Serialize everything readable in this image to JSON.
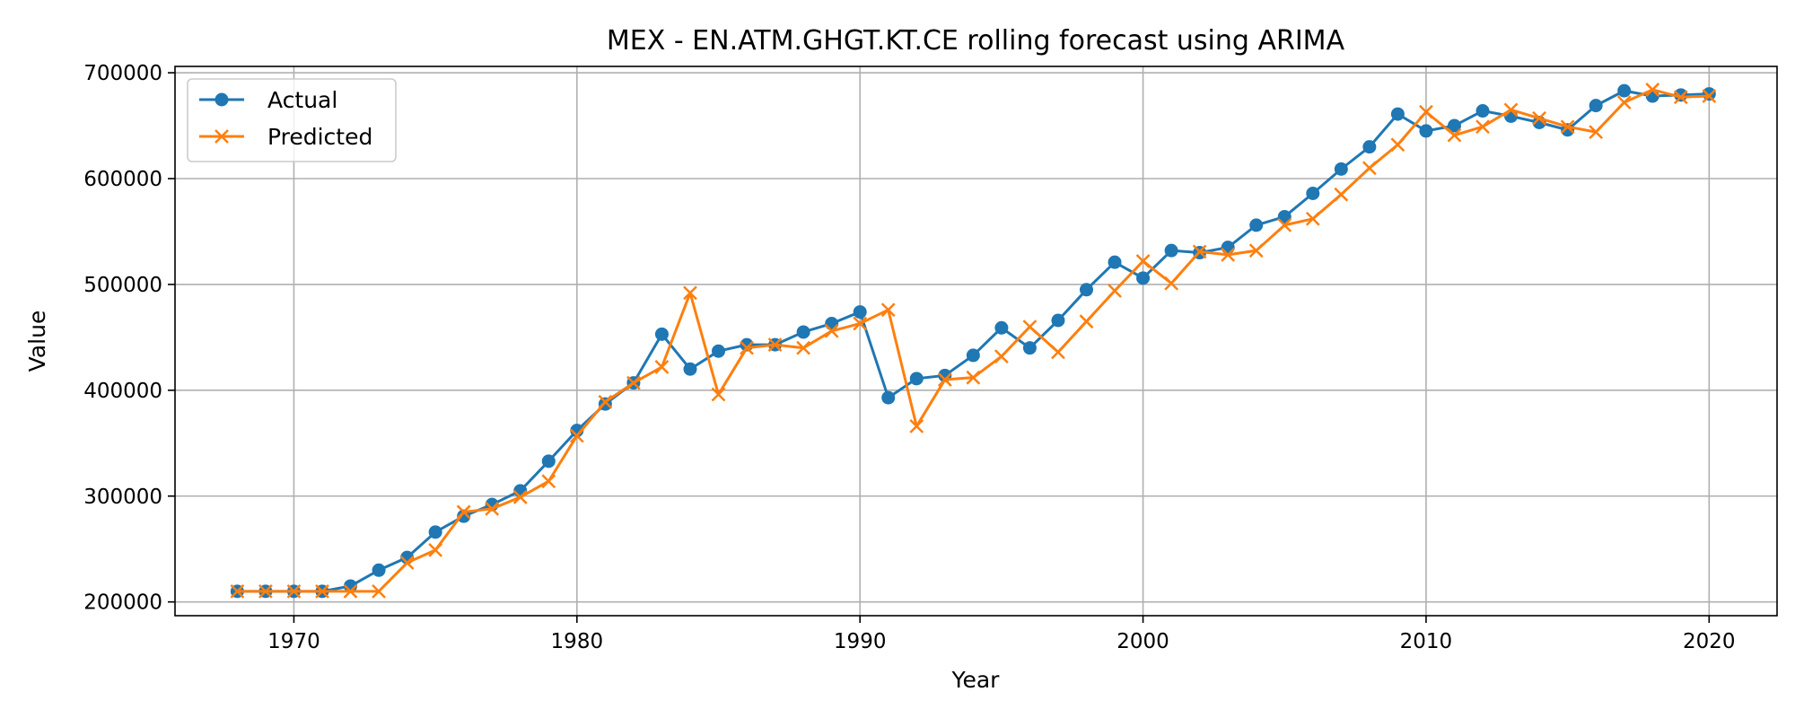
{
  "chart_data": {
    "type": "line",
    "title": "MEX - EN.ATM.GHGT.KT.CE rolling forecast using ARIMA",
    "xlabel": "Year",
    "ylabel": "Value",
    "xlim": [
      1965.8,
      2022.4
    ],
    "ylim": [
      187000,
      706000
    ],
    "xticks": [
      1970,
      1980,
      1990,
      2000,
      2010,
      2020
    ],
    "yticks": [
      200000,
      300000,
      400000,
      500000,
      600000,
      700000
    ],
    "grid": true,
    "legend": "top-left",
    "x": [
      1968,
      1969,
      1970,
      1971,
      1972,
      1973,
      1974,
      1975,
      1976,
      1977,
      1978,
      1979,
      1980,
      1981,
      1982,
      1983,
      1984,
      1985,
      1986,
      1987,
      1988,
      1989,
      1990,
      1991,
      1992,
      1993,
      1994,
      1995,
      1996,
      1997,
      1998,
      1999,
      2000,
      2001,
      2002,
      2003,
      2004,
      2005,
      2006,
      2007,
      2008,
      2009,
      2010,
      2011,
      2012,
      2013,
      2014,
      2015,
      2016,
      2017,
      2018,
      2019,
      2020
    ],
    "series": [
      {
        "name": "Actual",
        "color": "#1f77b4",
        "marker": "circle",
        "values": [
          210000,
          210000,
          210000,
          210000,
          215000,
          230000,
          242000,
          266000,
          281000,
          292000,
          305000,
          333000,
          362000,
          387000,
          407000,
          453000,
          420000,
          437000,
          443000,
          443000,
          455000,
          463000,
          474000,
          393000,
          411000,
          414000,
          433000,
          459000,
          440000,
          466000,
          495000,
          521000,
          506000,
          532000,
          530000,
          535000,
          556000,
          564000,
          586000,
          609000,
          630000,
          661000,
          645000,
          650000,
          664000,
          659000,
          653000,
          646000,
          669000,
          683000,
          678000,
          679000,
          680000
        ]
      },
      {
        "name": "Predicted",
        "color": "#ff7f0e",
        "marker": "x",
        "values": [
          210000,
          210000,
          210000,
          210000,
          210000,
          210000,
          237000,
          249000,
          285000,
          288000,
          299000,
          314000,
          357000,
          389000,
          407000,
          422000,
          492000,
          396000,
          440000,
          443000,
          440000,
          456000,
          463000,
          476000,
          366000,
          410000,
          412000,
          432000,
          460000,
          436000,
          465000,
          494000,
          522000,
          501000,
          531000,
          528000,
          532000,
          556000,
          562000,
          585000,
          610000,
          632000,
          663000,
          641000,
          649000,
          665000,
          657000,
          649000,
          644000,
          672000,
          684000,
          677000,
          678000
        ]
      }
    ]
  }
}
